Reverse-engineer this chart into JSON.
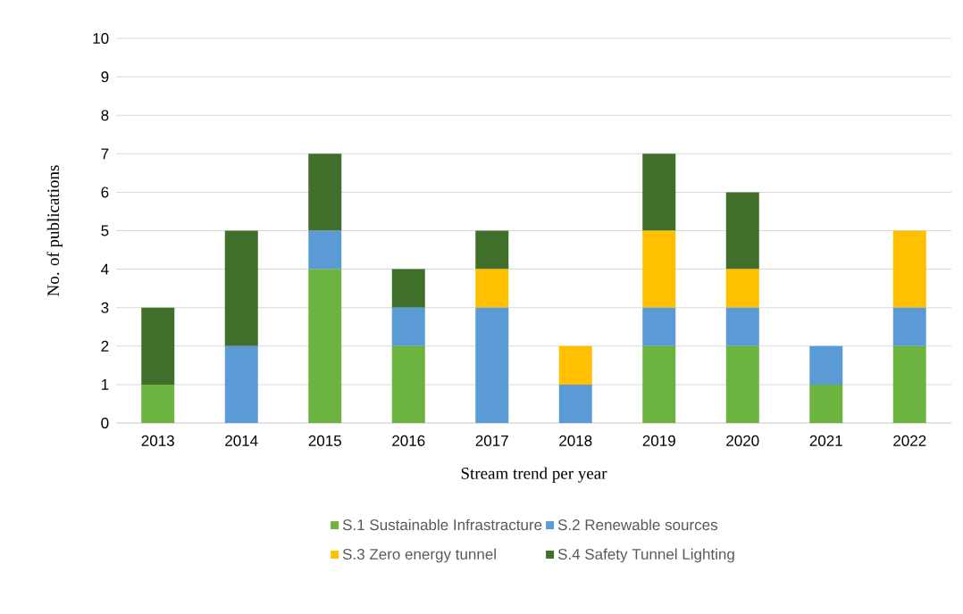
{
  "chart_data": {
    "type": "bar",
    "stacked": true,
    "xlabel": "Stream trend per year",
    "ylabel": "No. of publications",
    "categories": [
      "2013",
      "2014",
      "2015",
      "2016",
      "2017",
      "2018",
      "2019",
      "2020",
      "2021",
      "2022"
    ],
    "series": [
      {
        "name": "S.1 Sustainable Infrastracture",
        "color": "#6db33f",
        "values": [
          1,
          0,
          4,
          2,
          0,
          0,
          2,
          2,
          1,
          2
        ]
      },
      {
        "name": "S.2 Renewable sources",
        "color": "#5b9bd5",
        "values": [
          0,
          2,
          1,
          1,
          3,
          1,
          1,
          1,
          1,
          1
        ]
      },
      {
        "name": "S.3 Zero energy tunnel",
        "color": "#ffc000",
        "values": [
          0,
          0,
          0,
          0,
          1,
          1,
          2,
          1,
          0,
          2
        ]
      },
      {
        "name": "S.4 Safety Tunnel Lighting",
        "color": "#3f6f2a",
        "values": [
          2,
          3,
          2,
          1,
          1,
          0,
          2,
          2,
          0,
          0
        ]
      }
    ],
    "ylim": [
      0,
      10
    ],
    "yticks": [
      0,
      1,
      2,
      3,
      4,
      5,
      6,
      7,
      8,
      9,
      10
    ],
    "grid": "y",
    "legend": "bottom"
  }
}
